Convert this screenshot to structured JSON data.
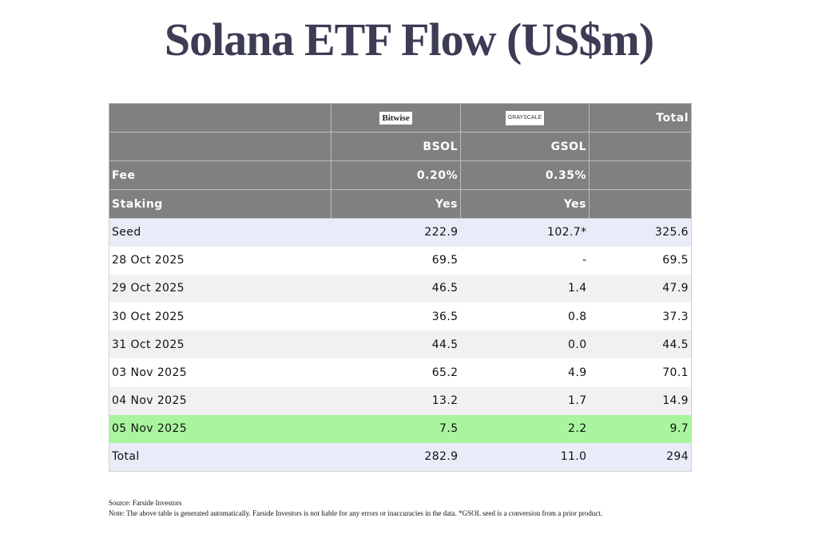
{
  "title": "Solana ETF Flow (US$m)",
  "header": {
    "issuers": {
      "bitwise": "Bitwise",
      "grayscale": "GRAYSCALE",
      "total": "Total"
    },
    "tickers": {
      "bsol": "BSOL",
      "gsol": "GSOL"
    },
    "fee": {
      "label": "Fee",
      "bsol": "0.20%",
      "gsol": "0.35%"
    },
    "staking": {
      "label": "Staking",
      "bsol": "Yes",
      "gsol": "Yes"
    }
  },
  "rows": [
    {
      "date": "Seed",
      "bsol": "222.9",
      "gsol": "102.7*",
      "total": "325.6"
    },
    {
      "date": "28 Oct 2025",
      "bsol": "69.5",
      "gsol": "-",
      "total": "69.5"
    },
    {
      "date": "29 Oct 2025",
      "bsol": "46.5",
      "gsol": "1.4",
      "total": "47.9"
    },
    {
      "date": "30 Oct 2025",
      "bsol": "36.5",
      "gsol": "0.8",
      "total": "37.3"
    },
    {
      "date": "31 Oct 2025",
      "bsol": "44.5",
      "gsol": "0.0",
      "total": "44.5"
    },
    {
      "date": "03 Nov 2025",
      "bsol": "65.2",
      "gsol": "4.9",
      "total": "70.1"
    },
    {
      "date": "04 Nov 2025",
      "bsol": "13.2",
      "gsol": "1.7",
      "total": "14.9"
    },
    {
      "date": "05 Nov 2025",
      "bsol": "7.5",
      "gsol": "2.2",
      "total": "9.7"
    },
    {
      "date": "Total",
      "bsol": "282.9",
      "gsol": "11.0",
      "total": "294"
    }
  ],
  "footnotes": {
    "source": "Source: Farside Investors",
    "note": "Note: The above table is generated automatically. Farside Investors is not liable for any errors or inaccuracies in the data. *GSOL seed is a conversion from a prior product."
  },
  "colors": {
    "header_bg": "#808080",
    "row_light": "#f1f1f1",
    "row_blue": "#e9ecf8",
    "row_highlight_green": "#a9f59f",
    "title": "#3c3c55"
  }
}
